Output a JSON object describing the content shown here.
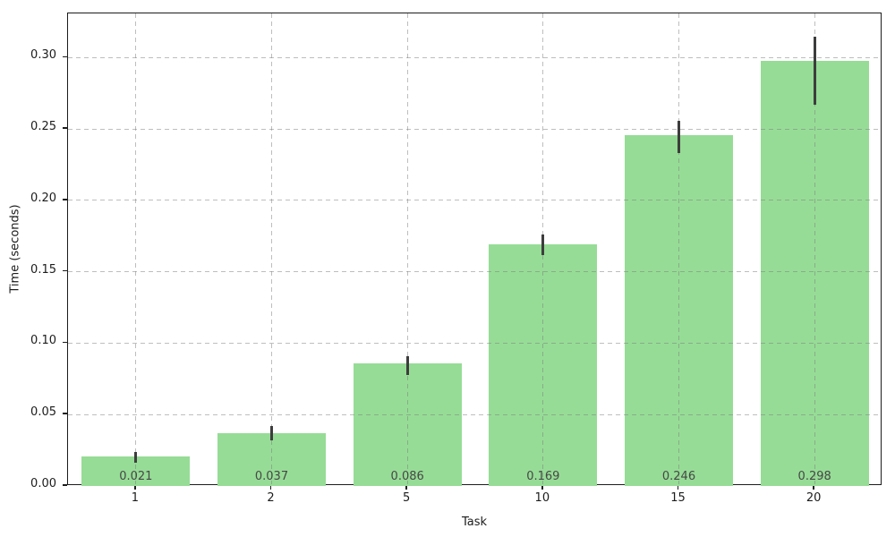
{
  "chart_data": {
    "type": "bar",
    "title": "",
    "xlabel": "Task",
    "ylabel": "Time (seconds)",
    "categories": [
      "1",
      "2",
      "5",
      "10",
      "15",
      "20"
    ],
    "values": [
      0.021,
      0.037,
      0.086,
      0.169,
      0.246,
      0.298
    ],
    "bar_labels": [
      "0.021",
      "0.037",
      "0.086",
      "0.169",
      "0.246",
      "0.298"
    ],
    "errors": [
      [
        0.016,
        0.024
      ],
      [
        0.032,
        0.042
      ],
      [
        0.078,
        0.091
      ],
      [
        0.162,
        0.176
      ],
      [
        0.233,
        0.256
      ],
      [
        0.267,
        0.315
      ]
    ],
    "yticks": [
      0.0,
      0.05,
      0.1,
      0.15,
      0.2,
      0.25,
      0.3
    ],
    "ytick_labels": [
      "0.00",
      "0.05",
      "0.10",
      "0.15",
      "0.20",
      "0.25",
      "0.30"
    ],
    "ylim": [
      0,
      0.331
    ],
    "grid": true,
    "grid_style": "dashed",
    "legend": null,
    "bar_color": "#96dc96",
    "error_color": "#3d3d3d",
    "value_label_color": "#474747",
    "grid_color": "#c8c8c8",
    "spine_color": "#1c1c1c",
    "tick_label_color": "#1c1c1c",
    "background_color": "#ffffff"
  }
}
